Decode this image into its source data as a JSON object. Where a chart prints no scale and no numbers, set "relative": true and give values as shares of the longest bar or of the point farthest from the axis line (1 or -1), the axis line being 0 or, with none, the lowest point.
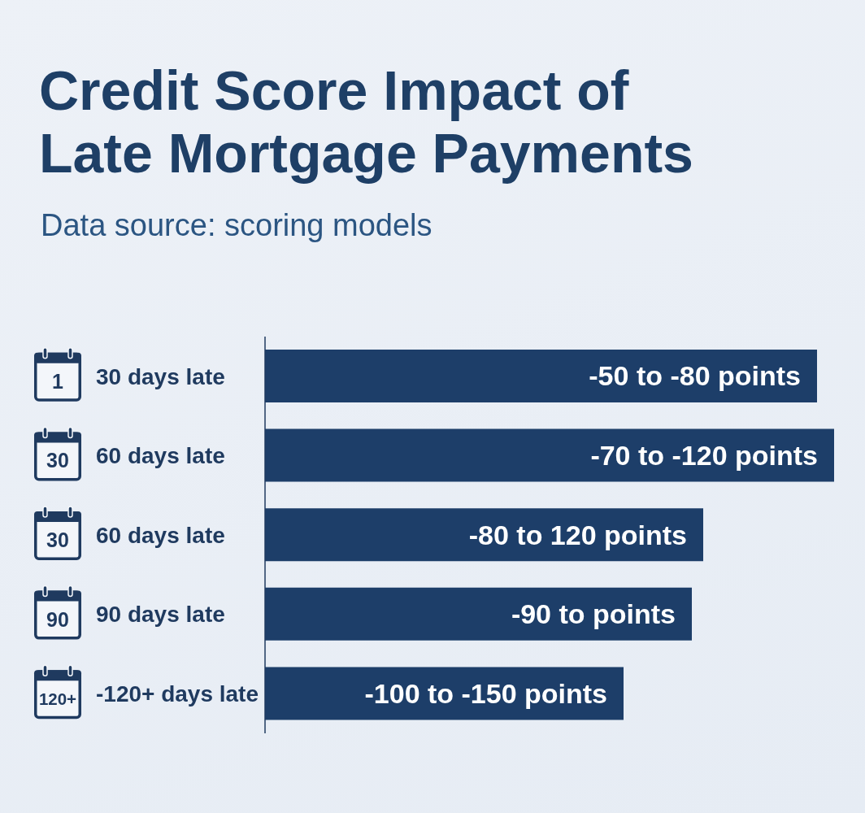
{
  "chart_data": {
    "type": "bar",
    "orientation": "horizontal",
    "relative": true,
    "title": "Credit Score Impact of Late Mortgage Payments",
    "subtitle": "Data source: scoring models",
    "categories": [
      "30 days late",
      "60 days late",
      "60 days late",
      "90 days late",
      "-120+ days late"
    ],
    "values": [
      0.97,
      1,
      0.77,
      0.75,
      0.63
    ],
    "color": "#1d3e69",
    "annotations": [
      "1",
      "-50 to -80 points",
      "30",
      "-70 to -120 points",
      "30",
      "-80 to 120 points",
      "90",
      "-90 to points",
      "120+",
      "-100 to -150 points"
    ]
  }
}
